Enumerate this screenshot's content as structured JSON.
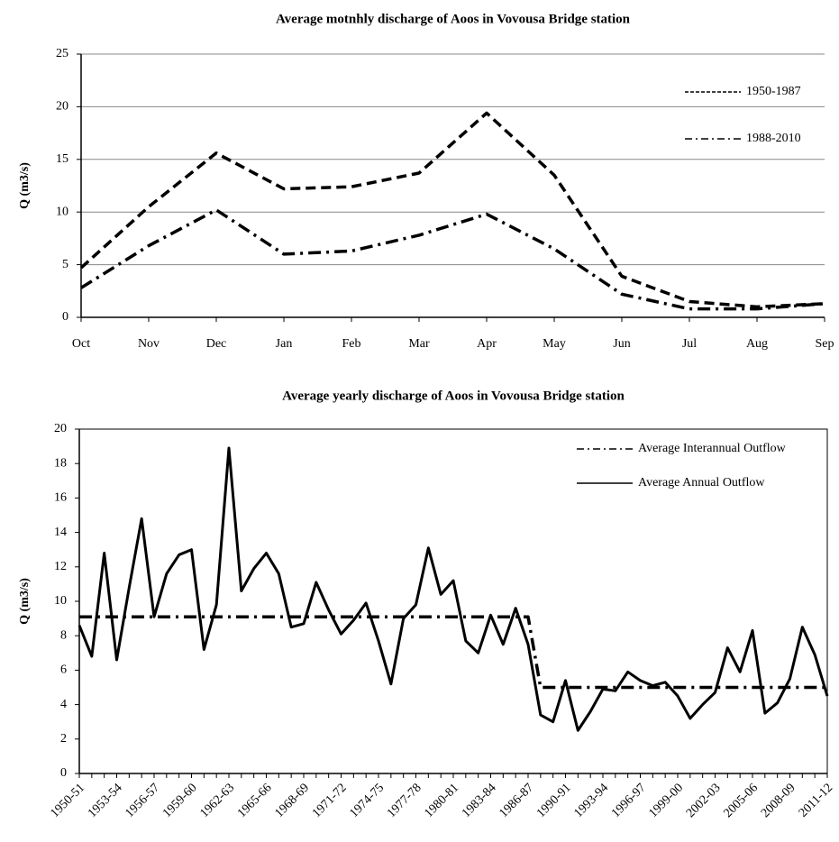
{
  "chart_data": [
    {
      "type": "line",
      "title": "Average motnhly discharge of Aoos in Vovousa Bridge station",
      "y_label": "Q (m3/s)",
      "categories": [
        "Oct",
        "Nov",
        "Dec",
        "Jan",
        "Feb",
        "Mar",
        "Apr",
        "May",
        "Jun",
        "Jul",
        "Aug",
        "Sep"
      ],
      "series": [
        {
          "name": "1950-1987",
          "color": "#000000",
          "dash": "dashed",
          "values": [
            4.7,
            10.5,
            15.6,
            12.2,
            12.4,
            13.7,
            19.4,
            13.5,
            3.9,
            1.5,
            1.0,
            1.3
          ]
        },
        {
          "name": "1988-2010",
          "color": "#000000",
          "dash": "dashdot",
          "values": [
            2.8,
            6.8,
            10.2,
            6.0,
            6.3,
            7.8,
            9.8,
            6.5,
            2.2,
            0.8,
            0.8,
            1.3
          ]
        }
      ],
      "ylim": [
        0,
        25
      ],
      "yticks": [
        0,
        5,
        10,
        15,
        20,
        25
      ],
      "grid": true,
      "frame": false,
      "rotate_x_labels": false,
      "legend": "upper right"
    },
    {
      "type": "line",
      "title": "Average yearly discharge of Aoos in Vovousa Bridge station",
      "y_label": "Q (m3/s)",
      "categories": [
        "1950-51",
        null,
        null,
        "1953-54",
        null,
        null,
        "1956-57",
        null,
        null,
        "1959-60",
        null,
        null,
        "1962-63",
        null,
        null,
        "1965-66",
        null,
        null,
        "1968-69",
        null,
        null,
        "1971-72",
        null,
        null,
        "1974-75",
        null,
        null,
        "1977-78",
        null,
        null,
        "1980-81",
        null,
        null,
        "1983-84",
        null,
        null,
        "1986-87",
        null,
        null,
        "1990-91",
        null,
        null,
        "1993-94",
        null,
        null,
        "1996-97",
        null,
        null,
        "1999-00",
        null,
        null,
        "2002-03",
        null,
        null,
        "2005-06",
        null,
        null,
        "2008-09",
        null,
        null,
        "2011-12"
      ],
      "series": [
        {
          "name": "Average Interannual Outflow",
          "color": "#000000",
          "dash": "dashdot",
          "values": [
            9.1,
            9.1,
            9.1,
            9.1,
            9.1,
            9.1,
            9.1,
            9.1,
            9.1,
            9.1,
            9.1,
            9.1,
            9.1,
            9.1,
            9.1,
            9.1,
            9.1,
            9.1,
            9.1,
            9.1,
            9.1,
            9.1,
            9.1,
            9.1,
            9.1,
            9.1,
            9.1,
            9.1,
            9.1,
            9.1,
            9.1,
            9.1,
            9.1,
            9.1,
            9.1,
            9.1,
            9.1,
            5.0,
            5.0,
            5.0,
            5.0,
            5.0,
            5.0,
            5.0,
            5.0,
            5.0,
            5.0,
            5.0,
            5.0,
            5.0,
            5.0,
            5.0,
            5.0,
            5.0,
            5.0,
            5.0,
            5.0,
            5.0,
            5.0,
            5.0,
            5.0
          ]
        },
        {
          "name": "Average Annual Outflow",
          "color": "#000000",
          "dash": "solid",
          "values": [
            8.6,
            6.8,
            12.8,
            6.6,
            10.8,
            14.8,
            9.1,
            11.6,
            12.7,
            13.0,
            7.2,
            9.8,
            18.9,
            10.6,
            11.9,
            12.8,
            11.6,
            8.5,
            8.7,
            11.1,
            9.5,
            8.1,
            8.9,
            9.9,
            7.7,
            5.2,
            9.0,
            9.8,
            13.1,
            10.4,
            11.2,
            7.7,
            7.0,
            9.2,
            7.5,
            9.6,
            7.5,
            3.4,
            3.0,
            5.4,
            2.5,
            3.6,
            4.9,
            4.8,
            5.9,
            5.4,
            5.1,
            5.3,
            4.5,
            3.2,
            4.0,
            4.7,
            7.3,
            5.9,
            8.3,
            3.5,
            4.1,
            5.5,
            8.5,
            6.9,
            4.5
          ]
        }
      ],
      "ylim": [
        0,
        20
      ],
      "yticks": [
        0,
        2,
        4,
        6,
        8,
        10,
        12,
        14,
        16,
        18,
        20
      ],
      "grid": false,
      "frame": true,
      "rotate_x_labels": true,
      "legend": "upper right"
    }
  ]
}
